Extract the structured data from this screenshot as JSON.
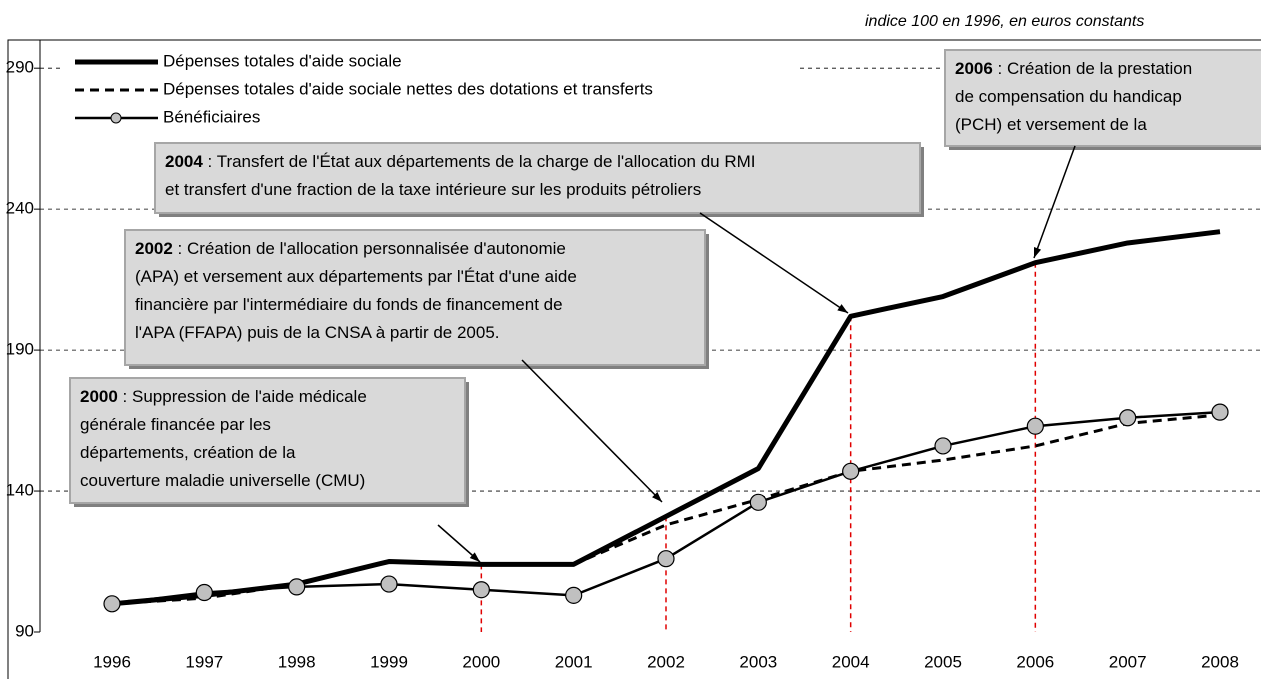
{
  "chart_data": {
    "type": "line",
    "subtitle": "indice 100 en 1996, en euros constants",
    "categories": [
      "1996",
      "1997",
      "1998",
      "1999",
      "2000",
      "2001",
      "2002",
      "2003",
      "2004",
      "2005",
      "2006",
      "2007",
      "2008"
    ],
    "series": [
      {
        "name": "Dépenses totales d'aide sociale",
        "color": "#000000",
        "values": [
          100,
          103,
          107,
          115,
          114,
          114,
          131,
          148,
          202,
          209,
          221,
          228,
          232
        ]
      },
      {
        "name": "Dépenses totales d'aide sociale nettes des dotations et transferts",
        "color": "#000000",
        "values": [
          100,
          102,
          107,
          115,
          114,
          114,
          128,
          137,
          147,
          151,
          156,
          164,
          167
        ]
      },
      {
        "name": "Bénéficiaires",
        "color": "#000000",
        "values": [
          100,
          104,
          106,
          107,
          105,
          103,
          116,
          136,
          147,
          156,
          163,
          166,
          168
        ]
      }
    ],
    "ylim": [
      90,
      300
    ],
    "yticks": [
      90,
      140,
      190,
      240,
      290
    ],
    "grid": true,
    "annotations": [
      {
        "year": "2000",
        "lines": [
          " : Suppression de l'aide médicale",
          "générale financée par les",
          "départements, création de la",
          "couverture maladie universelle (CMU)"
        ]
      },
      {
        "year": "2002",
        "lines": [
          " : Création de l'allocation personnalisée d'autonomie",
          "(APA) et versement aux départements par l'État d'une aide",
          "financière par l'intermédiaire du fonds de financement de",
          "l'APA (FFAPA) puis de la CNSA à partir de 2005."
        ]
      },
      {
        "year": "2004",
        "lines": [
          " : Transfert de l'État aux départements de la charge de l'allocation du RMI",
          "et transfert d'une fraction de la taxe intérieure sur les produits pétroliers"
        ]
      },
      {
        "year": "2006",
        "lines": [
          " : Création de la prestation",
          "de compensation du handicap",
          "(PCH) et versement de la"
        ]
      }
    ]
  }
}
